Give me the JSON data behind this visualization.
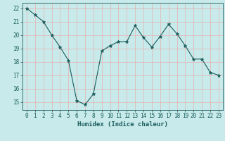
{
  "x": [
    0,
    1,
    2,
    3,
    4,
    5,
    6,
    7,
    8,
    9,
    10,
    11,
    12,
    13,
    14,
    15,
    16,
    17,
    18,
    19,
    20,
    21,
    22,
    23
  ],
  "y": [
    22,
    21.5,
    21,
    20,
    19.1,
    18.1,
    15.1,
    14.8,
    15.6,
    18.8,
    19.2,
    19.5,
    19.5,
    20.7,
    19.8,
    19.1,
    19.9,
    20.8,
    20.1,
    19.2,
    18.2,
    18.2,
    17.2,
    17.0
  ],
  "line_color": "#1a5c5c",
  "marker": "*",
  "marker_size": 3.5,
  "bg_color": "#c8eaea",
  "grid_color": "#e8b0b0",
  "xlabel": "Humidex (Indice chaleur)",
  "xlim": [
    -0.5,
    23.5
  ],
  "ylim": [
    14.4,
    22.4
  ],
  "yticks": [
    15,
    16,
    17,
    18,
    19,
    20,
    21,
    22
  ],
  "xticks": [
    0,
    1,
    2,
    3,
    4,
    5,
    6,
    7,
    8,
    9,
    10,
    11,
    12,
    13,
    14,
    15,
    16,
    17,
    18,
    19,
    20,
    21,
    22,
    23
  ],
  "tick_color": "#1a5c5c",
  "label_color": "#1a5c5c",
  "font_size_label": 6.5,
  "font_size_tick": 5.5
}
